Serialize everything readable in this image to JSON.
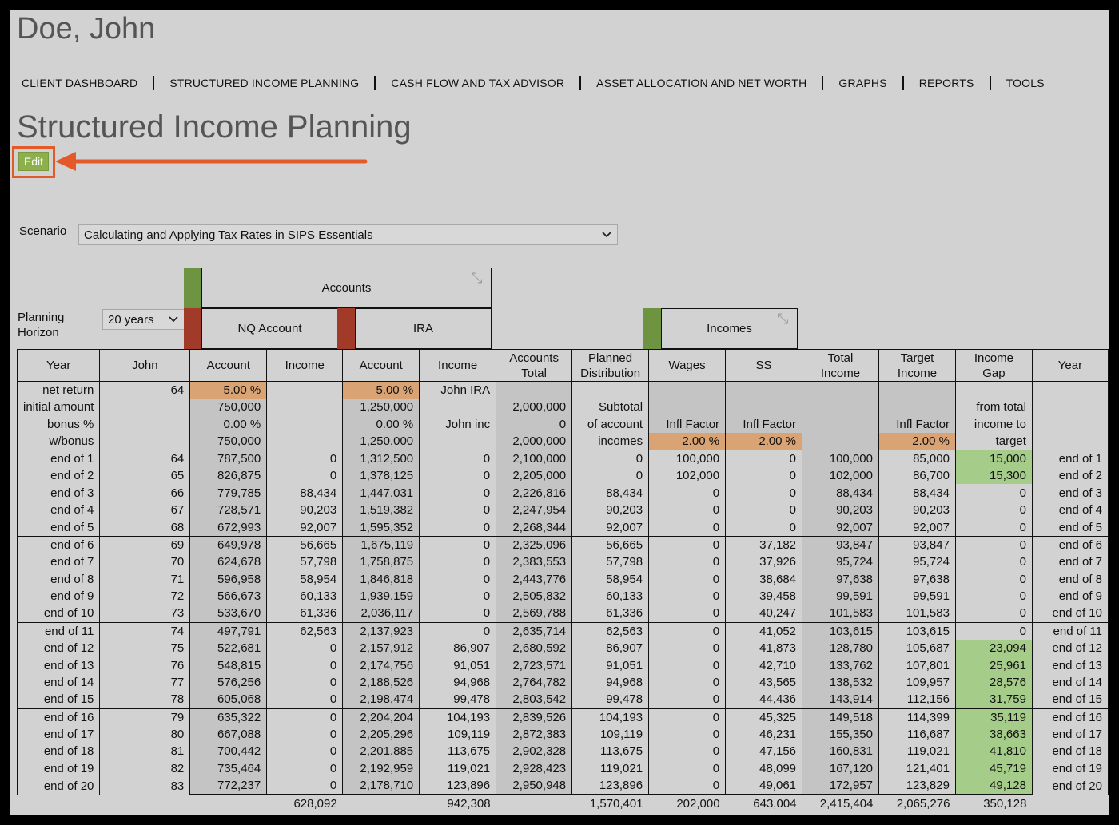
{
  "client": {
    "name": "Doe, John"
  },
  "nav": [
    "CLIENT DASHBOARD",
    "STRUCTURED INCOME PLANNING",
    "CASH FLOW AND TAX ADVISOR",
    "ASSET ALLOCATION AND NET WORTH",
    "GRAPHS",
    "REPORTS",
    "TOOLS"
  ],
  "page": {
    "title": "Structured Income Planning",
    "edit_label": "Edit"
  },
  "scenario": {
    "label": "Scenario",
    "value": "Calculating and Applying Tax Rates in SIPS Essentials"
  },
  "horizon": {
    "label_line1": "Planning",
    "label_line2": "Horizon",
    "value": "20 years"
  },
  "groups": {
    "accounts": "Accounts",
    "nq": "NQ Account",
    "ira": "IRA",
    "incomes": "Incomes"
  },
  "columns": [
    [
      "Year"
    ],
    [
      "John"
    ],
    [
      "Account"
    ],
    [
      "Income"
    ],
    [
      "Account"
    ],
    [
      "Income"
    ],
    [
      "Accounts",
      "Total"
    ],
    [
      "Planned",
      "Distribution"
    ],
    [
      "Wages"
    ],
    [
      "SS"
    ],
    [
      "Total",
      "Income"
    ],
    [
      "Target",
      "Income"
    ],
    [
      "Income",
      "Gap"
    ],
    [
      "Year"
    ]
  ],
  "header_rows": [
    [
      "net return",
      "64",
      "5.00  %",
      "",
      "5.00  %",
      "John IRA",
      "",
      "",
      "",
      "",
      "",
      "",
      "",
      ""
    ],
    [
      "initial amount",
      "",
      "750,000",
      "",
      "1,250,000",
      "",
      "2,000,000",
      "Subtotal",
      "",
      "",
      "",
      "",
      "from total",
      ""
    ],
    [
      "bonus %",
      "",
      "0.00  %",
      "",
      "0.00  %",
      "John inc",
      "0",
      "of account",
      "Infl Factor",
      "Infl Factor",
      "",
      "Infl Factor",
      "income to",
      ""
    ],
    [
      "w/bonus",
      "",
      "750,000",
      "",
      "1,250,000",
      "",
      "2,000,000",
      "incomes",
      "2.00  %",
      "2.00  %",
      "",
      "2.00  %",
      "target",
      ""
    ]
  ],
  "rows": [
    [
      "end of 1",
      "64",
      "787,500",
      "0",
      "1,312,500",
      "0",
      "2,100,000",
      "0",
      "100,000",
      "0",
      "100,000",
      "85,000",
      "15,000",
      "end of 1"
    ],
    [
      "end of 2",
      "65",
      "826,875",
      "0",
      "1,378,125",
      "0",
      "2,205,000",
      "0",
      "102,000",
      "0",
      "102,000",
      "86,700",
      "15,300",
      "end of 2"
    ],
    [
      "end of 3",
      "66",
      "779,785",
      "88,434",
      "1,447,031",
      "0",
      "2,226,816",
      "88,434",
      "0",
      "0",
      "88,434",
      "88,434",
      "0",
      "end of 3"
    ],
    [
      "end of 4",
      "67",
      "728,571",
      "90,203",
      "1,519,382",
      "0",
      "2,247,954",
      "90,203",
      "0",
      "0",
      "90,203",
      "90,203",
      "0",
      "end of 4"
    ],
    [
      "end of 5",
      "68",
      "672,993",
      "92,007",
      "1,595,352",
      "0",
      "2,268,344",
      "92,007",
      "0",
      "0",
      "92,007",
      "92,007",
      "0",
      "end of 5"
    ],
    [
      "end of 6",
      "69",
      "649,978",
      "56,665",
      "1,675,119",
      "0",
      "2,325,096",
      "56,665",
      "0",
      "37,182",
      "93,847",
      "93,847",
      "0",
      "end of 6"
    ],
    [
      "end of 7",
      "70",
      "624,678",
      "57,798",
      "1,758,875",
      "0",
      "2,383,553",
      "57,798",
      "0",
      "37,926",
      "95,724",
      "95,724",
      "0",
      "end of 7"
    ],
    [
      "end of 8",
      "71",
      "596,958",
      "58,954",
      "1,846,818",
      "0",
      "2,443,776",
      "58,954",
      "0",
      "38,684",
      "97,638",
      "97,638",
      "0",
      "end of 8"
    ],
    [
      "end of 9",
      "72",
      "566,673",
      "60,133",
      "1,939,159",
      "0",
      "2,505,832",
      "60,133",
      "0",
      "39,458",
      "99,591",
      "99,591",
      "0",
      "end of 9"
    ],
    [
      "end of 10",
      "73",
      "533,670",
      "61,336",
      "2,036,117",
      "0",
      "2,569,788",
      "61,336",
      "0",
      "40,247",
      "101,583",
      "101,583",
      "0",
      "end of 10"
    ],
    [
      "end of 11",
      "74",
      "497,791",
      "62,563",
      "2,137,923",
      "0",
      "2,635,714",
      "62,563",
      "0",
      "41,052",
      "103,615",
      "103,615",
      "0",
      "end of 11"
    ],
    [
      "end of 12",
      "75",
      "522,681",
      "0",
      "2,157,912",
      "86,907",
      "2,680,592",
      "86,907",
      "0",
      "41,873",
      "128,780",
      "105,687",
      "23,094",
      "end of 12"
    ],
    [
      "end of 13",
      "76",
      "548,815",
      "0",
      "2,174,756",
      "91,051",
      "2,723,571",
      "91,051",
      "0",
      "42,710",
      "133,762",
      "107,801",
      "25,961",
      "end of 13"
    ],
    [
      "end of 14",
      "77",
      "576,256",
      "0",
      "2,188,526",
      "94,968",
      "2,764,782",
      "94,968",
      "0",
      "43,565",
      "138,532",
      "109,957",
      "28,576",
      "end of 14"
    ],
    [
      "end of 15",
      "78",
      "605,068",
      "0",
      "2,198,474",
      "99,478",
      "2,803,542",
      "99,478",
      "0",
      "44,436",
      "143,914",
      "112,156",
      "31,759",
      "end of 15"
    ],
    [
      "end of 16",
      "79",
      "635,322",
      "0",
      "2,204,204",
      "104,193",
      "2,839,526",
      "104,193",
      "0",
      "45,325",
      "149,518",
      "114,399",
      "35,119",
      "end of 16"
    ],
    [
      "end of 17",
      "80",
      "667,088",
      "0",
      "2,205,296",
      "109,119",
      "2,872,383",
      "109,119",
      "0",
      "46,231",
      "155,350",
      "116,687",
      "38,663",
      "end of 17"
    ],
    [
      "end of 18",
      "81",
      "700,442",
      "0",
      "2,201,885",
      "113,675",
      "2,902,328",
      "113,675",
      "0",
      "47,156",
      "160,831",
      "119,021",
      "41,810",
      "end of 18"
    ],
    [
      "end of 19",
      "82",
      "735,464",
      "0",
      "2,192,959",
      "119,021",
      "2,928,423",
      "119,021",
      "0",
      "48,099",
      "167,120",
      "121,401",
      "45,719",
      "end of 19"
    ],
    [
      "end of 20",
      "83",
      "772,237",
      "0",
      "2,178,710",
      "123,896",
      "2,950,948",
      "123,896",
      "0",
      "49,061",
      "172,957",
      "123,829",
      "49,128",
      "end of 20"
    ]
  ],
  "totals": [
    "",
    "",
    "",
    "628,092",
    "",
    "942,308",
    "",
    "1,570,401",
    "202,000",
    "643,004",
    "2,415,404",
    "2,065,276",
    "350,128",
    ""
  ],
  "colors": {
    "edit_button": "#8db04d",
    "highlight": "#e25a2a",
    "income_cell": "#d9a374",
    "gap_positive": "#a6cc8a",
    "strip_green": "#6e9442",
    "strip_red": "#a23a2a"
  }
}
